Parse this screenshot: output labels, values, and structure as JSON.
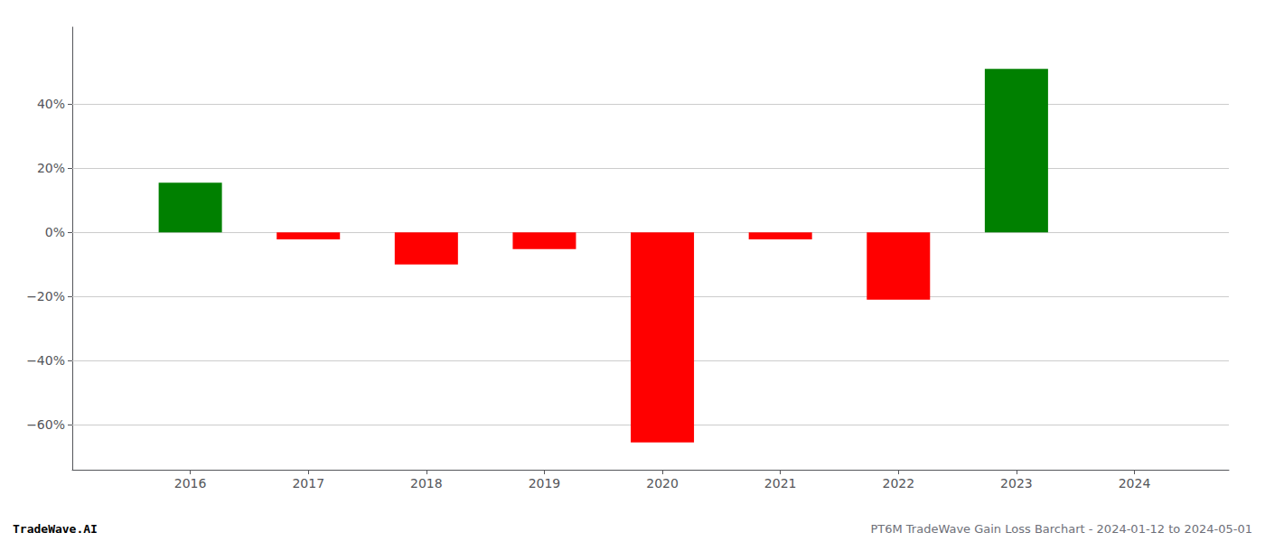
{
  "chart_data": {
    "type": "bar",
    "x": [
      2016,
      2017,
      2018,
      2019,
      2020,
      2021,
      2022,
      2023
    ],
    "values": [
      0.155,
      -0.022,
      -0.1,
      -0.052,
      -0.655,
      -0.022,
      -0.21,
      0.51
    ],
    "colors": [
      "#008000",
      "#ff0000",
      "#ff0000",
      "#ff0000",
      "#ff0000",
      "#ff0000",
      "#ff0000",
      "#008000"
    ],
    "xlim": [
      2015.0,
      2024.8
    ],
    "xticks": [
      2016,
      2017,
      2018,
      2019,
      2020,
      2021,
      2022,
      2023,
      2024
    ],
    "ylim": [
      -0.74,
      0.64
    ],
    "yticks": [
      {
        "value": -0.6,
        "label": "−60%"
      },
      {
        "value": -0.4,
        "label": "−40%"
      },
      {
        "value": -0.2,
        "label": "−20%"
      },
      {
        "value": 0.0,
        "label": "0%"
      },
      {
        "value": 0.2,
        "label": "20%"
      },
      {
        "value": 0.4,
        "label": "40%"
      }
    ],
    "grid": true,
    "annotations": [
      "TradeWave.AI",
      "PT6M TradeWave Gain Loss Barchart - 2024-01-12 to 2024-05-01"
    ]
  }
}
